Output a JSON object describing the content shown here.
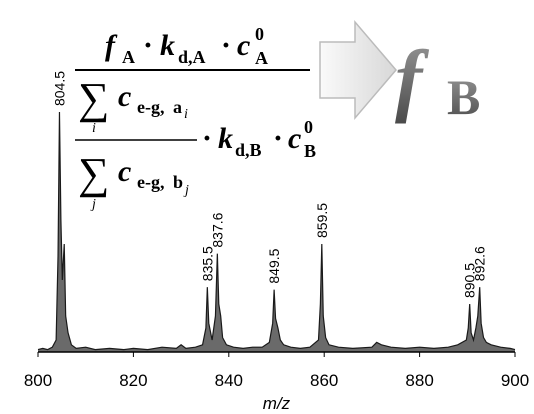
{
  "chart_data": {
    "type": "line",
    "x": [
      800,
      801,
      802,
      803,
      803.8,
      804.2,
      804.5,
      804.8,
      805.1,
      805.5,
      805.8,
      806.3,
      807,
      808,
      810,
      812,
      815,
      818,
      820,
      823,
      826,
      829,
      830,
      831,
      833,
      834.5,
      835.2,
      835.5,
      835.8,
      836.5,
      837.2,
      837.6,
      837.9,
      838.3,
      838.7,
      839.5,
      841,
      843,
      845,
      847,
      848.5,
      849.2,
      849.5,
      849.8,
      850.3,
      850.8,
      851.5,
      853,
      855,
      857,
      858.8,
      859.2,
      859.5,
      859.8,
      860.3,
      861,
      863,
      866,
      870,
      871,
      872,
      874,
      877,
      880,
      883,
      886,
      888,
      889.8,
      890.2,
      890.5,
      890.8,
      891.3,
      891.8,
      892.2,
      892.6,
      892.9,
      893.4,
      894,
      895,
      897,
      899,
      900
    ],
    "values": [
      1,
      1.5,
      1,
      2,
      5,
      40,
      100,
      55,
      30,
      45,
      15,
      8,
      3,
      1.5,
      2,
      1,
      1.5,
      1,
      1.5,
      1,
      2,
      1.5,
      3,
      1.5,
      2,
      3,
      10,
      27,
      12,
      5,
      15,
      41,
      20,
      15,
      6,
      3,
      2,
      1.5,
      2,
      2,
      4,
      12,
      26,
      14,
      10,
      5,
      3,
      2,
      1.5,
      2,
      5,
      20,
      45,
      15,
      6,
      3,
      2,
      1.5,
      2,
      4,
      3,
      2,
      1.5,
      2,
      1.5,
      2,
      3,
      5,
      10,
      20,
      8,
      5,
      10,
      15,
      27,
      12,
      6,
      4,
      3,
      2,
      1.5,
      1
    ],
    "color": "#1a1a1a",
    "fill": "#6a6a6a",
    "xlim": [
      800,
      900
    ],
    "xticks": [
      800,
      820,
      840,
      860,
      880,
      900
    ],
    "ylim": [
      0,
      100
    ],
    "xlabel": "m/z",
    "peak_labels": [
      804.5,
      835.5,
      837.6,
      849.5,
      859.5,
      890.5,
      892.6
    ]
  },
  "formula": {
    "numerator": [
      "f",
      "A",
      "·",
      "k",
      "d,A",
      "·",
      "c",
      "A",
      "0"
    ],
    "sum_a": [
      "∑",
      "c",
      "e-g,",
      "a",
      "i",
      "i"
    ],
    "sum_b": [
      "∑",
      "c",
      "e-g,",
      "b",
      "j",
      "j"
    ],
    "factor": [
      "·",
      "k",
      "d,B",
      "·",
      "c",
      "B",
      "0"
    ],
    "result": [
      "f",
      "B"
    ]
  }
}
